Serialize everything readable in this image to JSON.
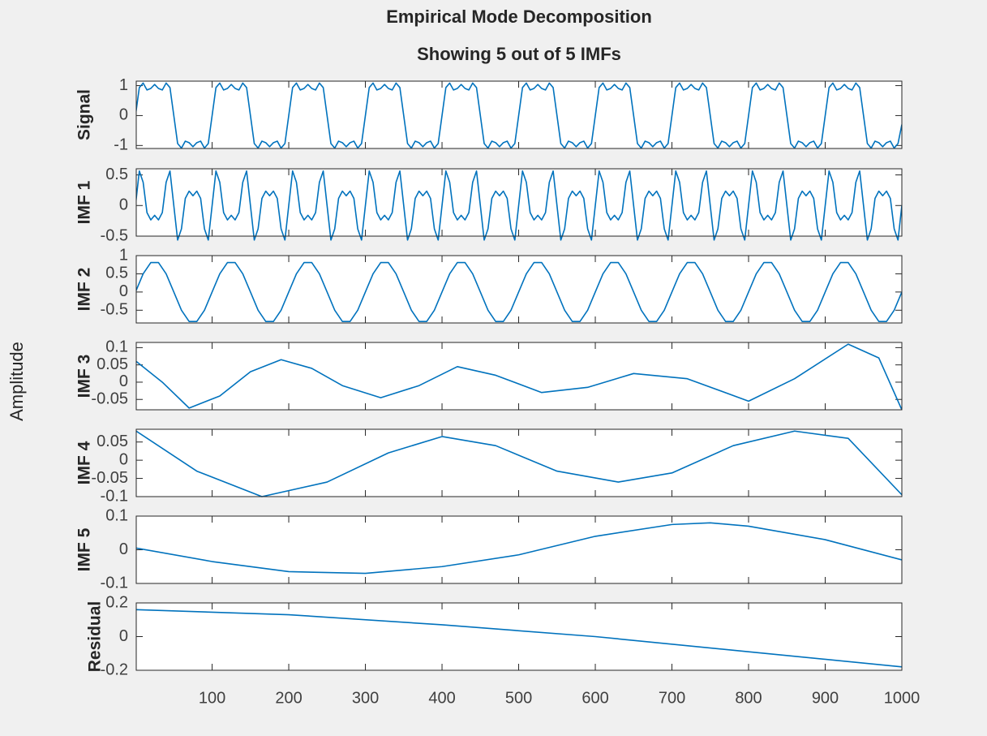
{
  "figure": {
    "title": "Empirical Mode Decomposition",
    "subtitle": "Showing 5 out of 5 IMFs",
    "ylabel": "Amplitude",
    "xlim": [
      1,
      1000
    ],
    "xticks": [
      100,
      200,
      300,
      400,
      500,
      600,
      700,
      800,
      900,
      1000
    ]
  },
  "chart_data": [
    {
      "type": "line",
      "ylabel": "Signal",
      "color": "#0072bd",
      "ylim": [
        -1.1,
        1.15
      ],
      "yticks": [
        -1,
        0,
        1
      ],
      "x": [
        0,
        5,
        10,
        15,
        20,
        25,
        30,
        35,
        40,
        45,
        50,
        55,
        60,
        65,
        70,
        75,
        80,
        85,
        90,
        95,
        100,
        105,
        110,
        115,
        120,
        125,
        130,
        135,
        140,
        145,
        150,
        155,
        160,
        165,
        170,
        175,
        180,
        185,
        190,
        195,
        200,
        205,
        210,
        215,
        220,
        225,
        230,
        235,
        240,
        245,
        250,
        255,
        260,
        265,
        270,
        275,
        280,
        285,
        290,
        295,
        300,
        305,
        310,
        315,
        320,
        325,
        330,
        335,
        340,
        345,
        350,
        355,
        360,
        365,
        370,
        375,
        380,
        385,
        390,
        395,
        400,
        405,
        410,
        415,
        420,
        425,
        430,
        435,
        440,
        445,
        450,
        455,
        460,
        465,
        470,
        475,
        480,
        485,
        490,
        495,
        500,
        505,
        510,
        515,
        520,
        525,
        530,
        535,
        540,
        545,
        550,
        555,
        560,
        565,
        570,
        575,
        580,
        585,
        590,
        595,
        600,
        605,
        610,
        615,
        620,
        625,
        630,
        635,
        640,
        645,
        650,
        655,
        660,
        665,
        670,
        675,
        680,
        685,
        690,
        695,
        700,
        705,
        710,
        715,
        720,
        725,
        730,
        735,
        740,
        745,
        750,
        755,
        760,
        765,
        770,
        775,
        780,
        785,
        790,
        795,
        800,
        805,
        810,
        815,
        820,
        825,
        830,
        835,
        840,
        845,
        850,
        855,
        860,
        865,
        870,
        875,
        880,
        885,
        890,
        895,
        900,
        905,
        910,
        915,
        920,
        925,
        930,
        935,
        940,
        945,
        950,
        955,
        960,
        965,
        970,
        975,
        980,
        985,
        990,
        995,
        1000
      ],
      "values": [
        0,
        0.935,
        1.086,
        0.854,
        0.906,
        1.04,
        0.906,
        0.854,
        1.086,
        0.935,
        0,
        -0.935,
        -1.086,
        -0.854,
        -0.906,
        -1.04,
        -0.906,
        -0.854,
        -1.086,
        -0.935,
        0,
        0.935,
        1.086,
        0.854,
        0.906,
        1.04,
        0.906,
        0.854,
        1.086,
        0.935,
        0,
        -0.935,
        -1.086,
        -0.854,
        -0.906,
        -1.04,
        -0.906,
        -0.854,
        -1.086,
        -0.935,
        0,
        0.935,
        1.086,
        0.854,
        0.906,
        1.04,
        0.906,
        0.854,
        1.086,
        0.935,
        0,
        -0.935,
        -1.086,
        -0.854,
        -0.906,
        -1.04,
        -0.906,
        -0.854,
        -1.086,
        -0.935,
        0,
        0.935,
        1.086,
        0.854,
        0.906,
        1.04,
        0.906,
        0.854,
        1.086,
        0.935,
        0,
        -0.935,
        -1.086,
        -0.854,
        -0.906,
        -1.04,
        -0.906,
        -0.854,
        -1.086,
        -0.935,
        0,
        0.935,
        1.086,
        0.854,
        0.906,
        1.04,
        0.906,
        0.854,
        1.086,
        0.935,
        0,
        -0.935,
        -1.086,
        -0.854,
        -0.906,
        -1.04,
        -0.906,
        -0.854,
        -1.086,
        -0.935,
        0,
        0.935,
        1.086,
        0.854,
        0.906,
        1.04,
        0.906,
        0.854,
        1.086,
        0.935,
        0,
        -0.935,
        -1.086,
        -0.854,
        -0.906,
        -1.04,
        -0.906,
        -0.854,
        -1.086,
        -0.935,
        0,
        0.935,
        1.086,
        0.854,
        0.906,
        1.04,
        0.906,
        0.854,
        1.086,
        0.935,
        0,
        -0.935,
        -1.086,
        -0.854,
        -0.906,
        -1.04,
        -0.906,
        -0.854,
        -1.086,
        -0.935,
        0,
        0.935,
        1.086,
        0.854,
        0.906,
        1.04,
        0.906,
        0.854,
        1.086,
        0.935,
        0,
        -0.935,
        -1.086,
        -0.854,
        -0.906,
        -1.04,
        -0.906,
        -0.854,
        -1.086,
        -0.935,
        0,
        0.935,
        1.086,
        0.854,
        0.906,
        1.04,
        0.906,
        0.854,
        1.086,
        0.935,
        0,
        -0.935,
        -1.086,
        -0.854,
        -0.906,
        -1.04,
        -0.906,
        -0.854,
        -1.086,
        -0.935,
        0,
        0.935,
        1.086,
        0.854,
        0.906,
        1.04,
        0.906,
        0.854,
        1.086,
        0.935,
        0,
        -0.935,
        -1.086,
        -0.854,
        -0.906,
        -1.04,
        -0.906,
        -0.854,
        -1.086,
        -0.935,
        -0.3
      ]
    },
    {
      "type": "line",
      "ylabel": "IMF 1",
      "color": "#0072bd",
      "ylim": [
        -0.5,
        0.6
      ],
      "yticks": [
        -0.5,
        0,
        0.5
      ],
      "x": [
        0,
        5,
        10,
        15,
        20,
        25,
        30,
        35,
        40,
        45,
        50,
        55,
        60,
        65,
        70,
        75,
        80,
        85,
        90,
        95,
        100,
        105,
        110,
        115,
        120,
        125,
        130,
        135,
        140,
        145,
        150,
        155,
        160,
        165,
        170,
        175,
        180,
        185,
        190,
        195,
        200,
        205,
        210,
        215,
        220,
        225,
        230,
        235,
        240,
        245,
        250,
        255,
        260,
        265,
        270,
        275,
        280,
        285,
        290,
        295,
        300,
        305,
        310,
        315,
        320,
        325,
        330,
        335,
        340,
        345,
        350,
        355,
        360,
        365,
        370,
        375,
        380,
        385,
        390,
        395,
        400,
        405,
        410,
        415,
        420,
        425,
        430,
        435,
        440,
        445,
        450,
        455,
        460,
        465,
        470,
        475,
        480,
        485,
        490,
        495,
        500,
        505,
        510,
        515,
        520,
        525,
        530,
        535,
        540,
        545,
        550,
        555,
        560,
        565,
        570,
        575,
        580,
        585,
        590,
        595,
        600,
        605,
        610,
        615,
        620,
        625,
        630,
        635,
        640,
        645,
        650,
        655,
        660,
        665,
        670,
        675,
        680,
        685,
        690,
        695,
        700,
        705,
        710,
        715,
        720,
        725,
        730,
        735,
        740,
        745,
        750,
        755,
        760,
        765,
        770,
        775,
        780,
        785,
        790,
        795,
        800,
        805,
        810,
        815,
        820,
        825,
        830,
        835,
        840,
        845,
        850,
        855,
        860,
        865,
        870,
        875,
        880,
        885,
        890,
        895,
        900,
        905,
        910,
        915,
        920,
        925,
        930,
        935,
        940,
        945,
        950,
        955,
        960,
        965,
        970,
        975,
        980,
        985,
        990,
        995,
        1000
      ],
      "values": [
        0,
        0.564,
        0.38,
        -0.116,
        -0.235,
        -0.16,
        -0.235,
        -0.116,
        0.38,
        0.564,
        0,
        -0.564,
        -0.38,
        0.116,
        0.235,
        0.16,
        0.235,
        0.116,
        -0.38,
        -0.564,
        0,
        0.564,
        0.38,
        -0.116,
        -0.235,
        -0.16,
        -0.235,
        -0.116,
        0.38,
        0.564,
        0,
        -0.564,
        -0.38,
        0.116,
        0.235,
        0.16,
        0.235,
        0.116,
        -0.38,
        -0.564,
        0,
        0.564,
        0.38,
        -0.116,
        -0.235,
        -0.16,
        -0.235,
        -0.116,
        0.38,
        0.564,
        0,
        -0.564,
        -0.38,
        0.116,
        0.235,
        0.16,
        0.235,
        0.116,
        -0.38,
        -0.564,
        0,
        0.564,
        0.38,
        -0.116,
        -0.235,
        -0.16,
        -0.235,
        -0.116,
        0.38,
        0.564,
        0,
        -0.564,
        -0.38,
        0.116,
        0.235,
        0.16,
        0.235,
        0.116,
        -0.38,
        -0.564,
        0,
        0.564,
        0.38,
        -0.116,
        -0.235,
        -0.16,
        -0.235,
        -0.116,
        0.38,
        0.564,
        0,
        -0.564,
        -0.38,
        0.116,
        0.235,
        0.16,
        0.235,
        0.116,
        -0.38,
        -0.564,
        0,
        0.564,
        0.38,
        -0.116,
        -0.235,
        -0.16,
        -0.235,
        -0.116,
        0.38,
        0.564,
        0,
        -0.564,
        -0.38,
        0.116,
        0.235,
        0.16,
        0.235,
        0.116,
        -0.38,
        -0.564,
        0,
        0.564,
        0.38,
        -0.116,
        -0.235,
        -0.16,
        -0.235,
        -0.116,
        0.38,
        0.564,
        0,
        -0.564,
        -0.38,
        0.116,
        0.235,
        0.16,
        0.235,
        0.116,
        -0.38,
        -0.564,
        0,
        0.564,
        0.38,
        -0.116,
        -0.235,
        -0.16,
        -0.235,
        -0.116,
        0.38,
        0.564,
        0,
        -0.564,
        -0.38,
        0.116,
        0.235,
        0.16,
        0.235,
        0.116,
        -0.38,
        -0.564,
        0,
        0.564,
        0.38,
        -0.116,
        -0.235,
        -0.16,
        -0.235,
        -0.116,
        0.38,
        0.564,
        0,
        -0.564,
        -0.38,
        0.116,
        0.235,
        0.16,
        0.235,
        0.116,
        -0.38,
        -0.564,
        0,
        0.564,
        0.38,
        -0.116,
        -0.235,
        -0.16,
        -0.235,
        -0.116,
        0.38,
        0.564,
        0,
        -0.564,
        -0.38,
        0.116,
        0.235,
        0.16,
        0.235,
        0.116,
        -0.38,
        -0.564,
        0
      ]
    },
    {
      "type": "line",
      "ylabel": "IMF 2",
      "color": "#0072bd",
      "ylim": [
        -0.85,
        1
      ],
      "yticks": [
        -0.5,
        0,
        0.5,
        1
      ],
      "x": [
        0,
        10,
        20,
        30,
        40,
        50,
        60,
        70,
        80,
        90,
        100,
        110,
        120,
        130,
        140,
        150,
        160,
        170,
        180,
        190,
        200,
        210,
        220,
        230,
        240,
        250,
        260,
        270,
        280,
        290,
        300,
        310,
        320,
        330,
        340,
        350,
        360,
        370,
        380,
        390,
        400,
        410,
        420,
        430,
        440,
        450,
        460,
        470,
        480,
        490,
        500,
        510,
        520,
        530,
        540,
        550,
        560,
        570,
        580,
        590,
        600,
        610,
        620,
        630,
        640,
        650,
        660,
        670,
        680,
        690,
        700,
        710,
        720,
        730,
        740,
        750,
        760,
        770,
        780,
        790,
        800,
        810,
        820,
        830,
        840,
        850,
        860,
        870,
        880,
        890,
        900,
        910,
        920,
        930,
        940,
        950,
        960,
        970,
        980,
        990,
        1000
      ],
      "values": [
        0,
        0.5,
        0.81,
        0.81,
        0.5,
        0,
        -0.5,
        -0.81,
        -0.81,
        -0.5,
        0,
        0.5,
        0.81,
        0.81,
        0.5,
        0,
        -0.5,
        -0.81,
        -0.81,
        -0.5,
        0,
        0.5,
        0.81,
        0.81,
        0.5,
        0,
        -0.5,
        -0.81,
        -0.81,
        -0.5,
        0,
        0.5,
        0.81,
        0.81,
        0.5,
        0,
        -0.5,
        -0.81,
        -0.81,
        -0.5,
        0,
        0.5,
        0.81,
        0.81,
        0.5,
        0,
        -0.5,
        -0.81,
        -0.81,
        -0.5,
        0,
        0.5,
        0.81,
        0.81,
        0.5,
        0,
        -0.5,
        -0.81,
        -0.81,
        -0.5,
        0,
        0.5,
        0.81,
        0.81,
        0.5,
        0,
        -0.5,
        -0.81,
        -0.81,
        -0.5,
        0,
        0.5,
        0.81,
        0.81,
        0.5,
        0,
        -0.5,
        -0.81,
        -0.81,
        -0.5,
        0,
        0.5,
        0.81,
        0.81,
        0.5,
        0,
        -0.5,
        -0.81,
        -0.81,
        -0.5,
        0,
        0.5,
        0.81,
        0.81,
        0.5,
        0,
        -0.5,
        -0.81,
        -0.81,
        -0.5,
        0
      ]
    },
    {
      "type": "line",
      "ylabel": "IMF 3",
      "color": "#0072bd",
      "ylim": [
        -0.08,
        0.115
      ],
      "yticks": [
        -0.05,
        0,
        0.05,
        0.1
      ],
      "x": [
        1,
        35,
        70,
        110,
        150,
        190,
        230,
        270,
        320,
        370,
        420,
        470,
        530,
        590,
        650,
        720,
        800,
        860,
        930,
        970,
        1000
      ],
      "values": [
        0.06,
        0,
        -0.075,
        -0.04,
        0.03,
        0.065,
        0.04,
        -0.01,
        -0.045,
        -0.01,
        0.045,
        0.02,
        -0.03,
        -0.015,
        0.025,
        0.01,
        -0.055,
        0.01,
        0.11,
        0.07,
        -0.08
      ]
    },
    {
      "type": "line",
      "ylabel": "IMF 4",
      "color": "#0072bd",
      "ylim": [
        -0.1,
        0.085
      ],
      "yticks": [
        -0.1,
        -0.05,
        0,
        0.05
      ],
      "x": [
        1,
        80,
        165,
        250,
        330,
        400,
        470,
        550,
        630,
        700,
        780,
        860,
        930,
        1000
      ],
      "values": [
        0.08,
        -0.03,
        -0.1,
        -0.06,
        0.02,
        0.065,
        0.04,
        -0.03,
        -0.06,
        -0.035,
        0.04,
        0.08,
        0.06,
        -0.095
      ]
    },
    {
      "type": "line",
      "ylabel": "IMF 5",
      "color": "#0072bd",
      "ylim": [
        -0.1,
        0.1
      ],
      "yticks": [
        -0.1,
        0,
        0.1
      ],
      "x": [
        1,
        100,
        200,
        300,
        400,
        500,
        600,
        700,
        750,
        800,
        900,
        1000
      ],
      "values": [
        0.005,
        -0.035,
        -0.065,
        -0.07,
        -0.05,
        -0.015,
        0.04,
        0.075,
        0.08,
        0.07,
        0.03,
        -0.03
      ]
    },
    {
      "type": "line",
      "ylabel": "Residual",
      "color": "#0072bd",
      "ylim": [
        -0.2,
        0.2
      ],
      "yticks": [
        -0.2,
        0,
        0.2
      ],
      "x": [
        1,
        200,
        400,
        600,
        800,
        1000
      ],
      "values": [
        0.16,
        0.13,
        0.07,
        0,
        -0.09,
        -0.18
      ]
    }
  ]
}
